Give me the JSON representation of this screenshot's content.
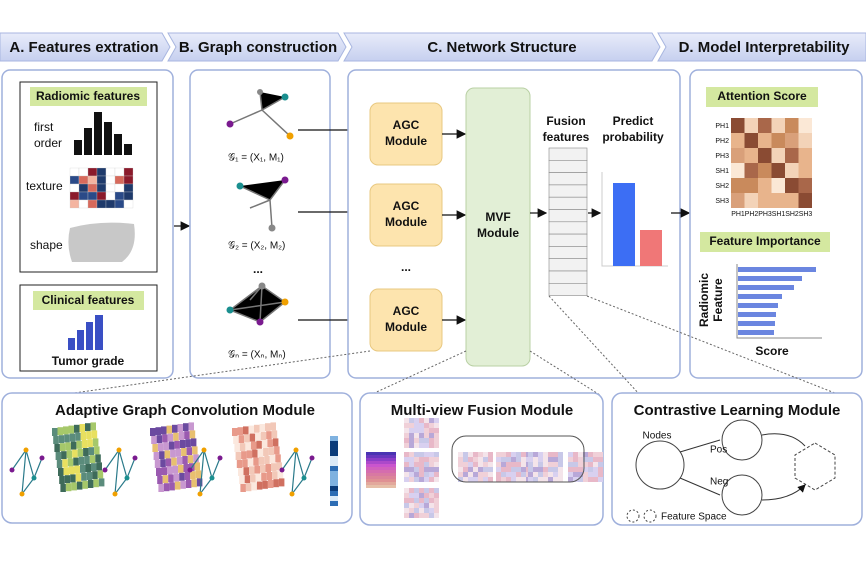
{
  "header": {
    "steps": [
      "A. Features extration",
      "B. Graph construction",
      "C. Network Structure",
      "D. Model Interpretability"
    ]
  },
  "panel_a": {
    "radiomic_title": "Radiomic features",
    "first_order": [
      "first",
      "order"
    ],
    "texture": "texture",
    "shape": "shape",
    "clinical_title": "Clinical features",
    "tumor_grade": "Tumor grade"
  },
  "panel_b": {
    "graphs": [
      "𝒢₁ = (X₁, M₁)",
      "𝒢₂ = (X₂, M₂)",
      "𝒢ₙ = (Xₙ, Mₙ)"
    ],
    "ellipsis": "..."
  },
  "panel_c": {
    "agc": [
      [
        "AGC",
        "Module"
      ],
      [
        "AGC",
        "Module"
      ],
      [
        "AGC",
        "Module"
      ]
    ],
    "ellipsis": "...",
    "mvf": [
      "MVF",
      "Module"
    ],
    "fusion": [
      "Fusion",
      "features"
    ],
    "predict": [
      "Predict",
      "probability"
    ]
  },
  "panel_d": {
    "attention_title": "Attention Score",
    "heatmap_labels": [
      "PH1",
      "PH2",
      "PH3",
      "SH1",
      "SH2",
      "SH3"
    ],
    "importance_title": "Feature Importance",
    "y_label": [
      "Radiomic",
      "Feature"
    ],
    "x_label": "Score"
  },
  "bottom": {
    "agc_title": "Adaptive Graph Convolution Module",
    "mvf_title": "Multi-view Fusion Module",
    "cl_title": "Contrastive Learning Module",
    "nodes": "Nodes",
    "pos": "Pos",
    "neg": "Neg",
    "feature_space": "Feature Space"
  }
}
